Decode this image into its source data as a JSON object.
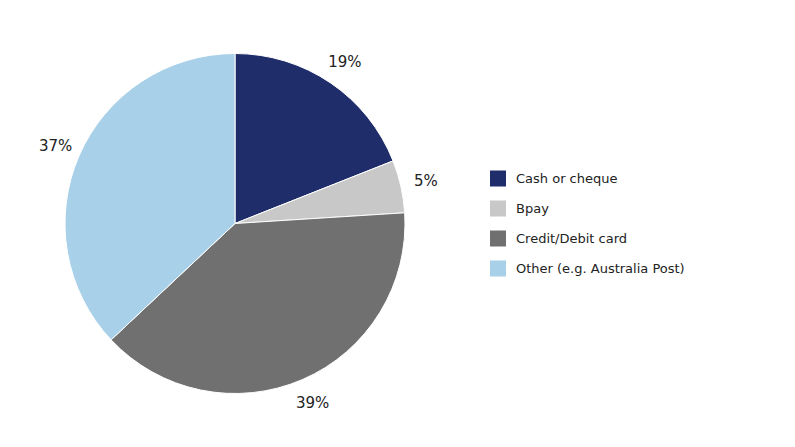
{
  "chart_data": {
    "type": "pie",
    "categories": [
      "Cash or cheque",
      "Bpay",
      "Credit/Debit card",
      "Other (e.g. Australia Post)"
    ],
    "values": [
      19,
      5,
      39,
      37
    ],
    "value_labels": [
      "19%",
      "5%",
      "39%",
      "37%"
    ],
    "colors": [
      "#1f2d6b",
      "#c8c8c8",
      "#707070",
      "#a8d0e8"
    ],
    "data_labels": true,
    "legend": "right"
  }
}
